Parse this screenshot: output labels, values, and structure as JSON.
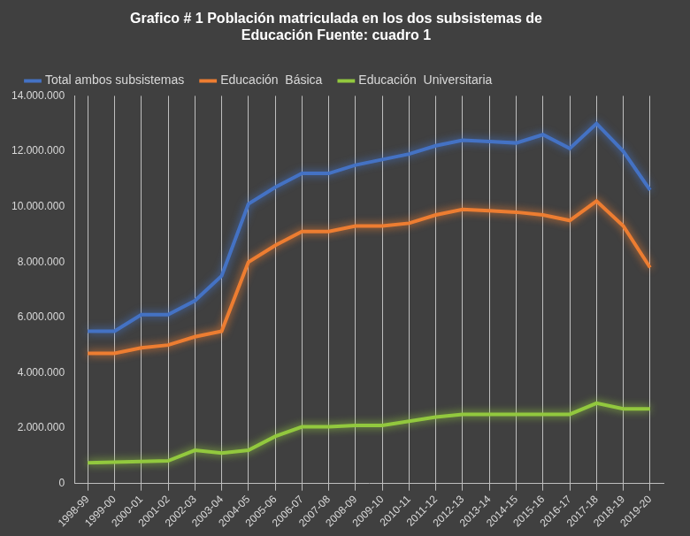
{
  "chart_data": {
    "type": "line",
    "title": [
      "Grafico # 1 Población matriculada en los dos subsistemas de",
      "Educación Fuente: cuadro 1"
    ],
    "categories": [
      "1998-99",
      "1999-00",
      "2000-01",
      "2001-02",
      "2002-03",
      "2003-04",
      "2004-05",
      "2005-06",
      "2006-07",
      "2007-08",
      "2008-09",
      "2009-10",
      "2010-11",
      "2011-12",
      "2012-13",
      "2013-14",
      "2014-15",
      "2015-16",
      "2016-17",
      "2017-18",
      "2018-19",
      "2019-20"
    ],
    "series": [
      {
        "name": "Total ambos subsistemas",
        "color": "#4472c4",
        "values": [
          5500000,
          5500000,
          6100000,
          6100000,
          6600000,
          7500000,
          10100000,
          10700000,
          11200000,
          11200000,
          11500000,
          11700000,
          11900000,
          12200000,
          12400000,
          12350000,
          12300000,
          12600000,
          12100000,
          13000000,
          12000000,
          10600000
        ]
      },
      {
        "name": "Educación  Básica",
        "color": "#ed7d31",
        "values": [
          4700000,
          4700000,
          4900000,
          5000000,
          5300000,
          5500000,
          8000000,
          8600000,
          9100000,
          9100000,
          9300000,
          9300000,
          9400000,
          9700000,
          9900000,
          9850000,
          9800000,
          9700000,
          9500000,
          10200000,
          9300000,
          7800000
        ]
      },
      {
        "name": "Educación  Universitaria",
        "color": "#92c83e",
        "values": [
          750000,
          770000,
          800000,
          820000,
          1200000,
          1100000,
          1200000,
          1700000,
          2050000,
          2050000,
          2100000,
          2100000,
          2250000,
          2400000,
          2500000,
          2500000,
          2500000,
          2500000,
          2500000,
          2900000,
          2700000,
          2700000
        ]
      }
    ],
    "ylim": [
      0,
      14000000
    ],
    "yticks": [
      0,
      {
        "value": 2000000,
        "label": "2.000.000"
      },
      {
        "value": 4000000,
        "label": "4.000.000"
      },
      {
        "value": 6000000,
        "label": "6.000.000"
      },
      {
        "value": 8000000,
        "label": "8.000.000"
      },
      {
        "value": 10000000,
        "label": "10.000.000"
      },
      {
        "value": 12000000,
        "label": "12.000.000"
      },
      {
        "value": 14000000,
        "label": "14.000.000"
      }
    ],
    "grid": true,
    "legend": "top"
  }
}
